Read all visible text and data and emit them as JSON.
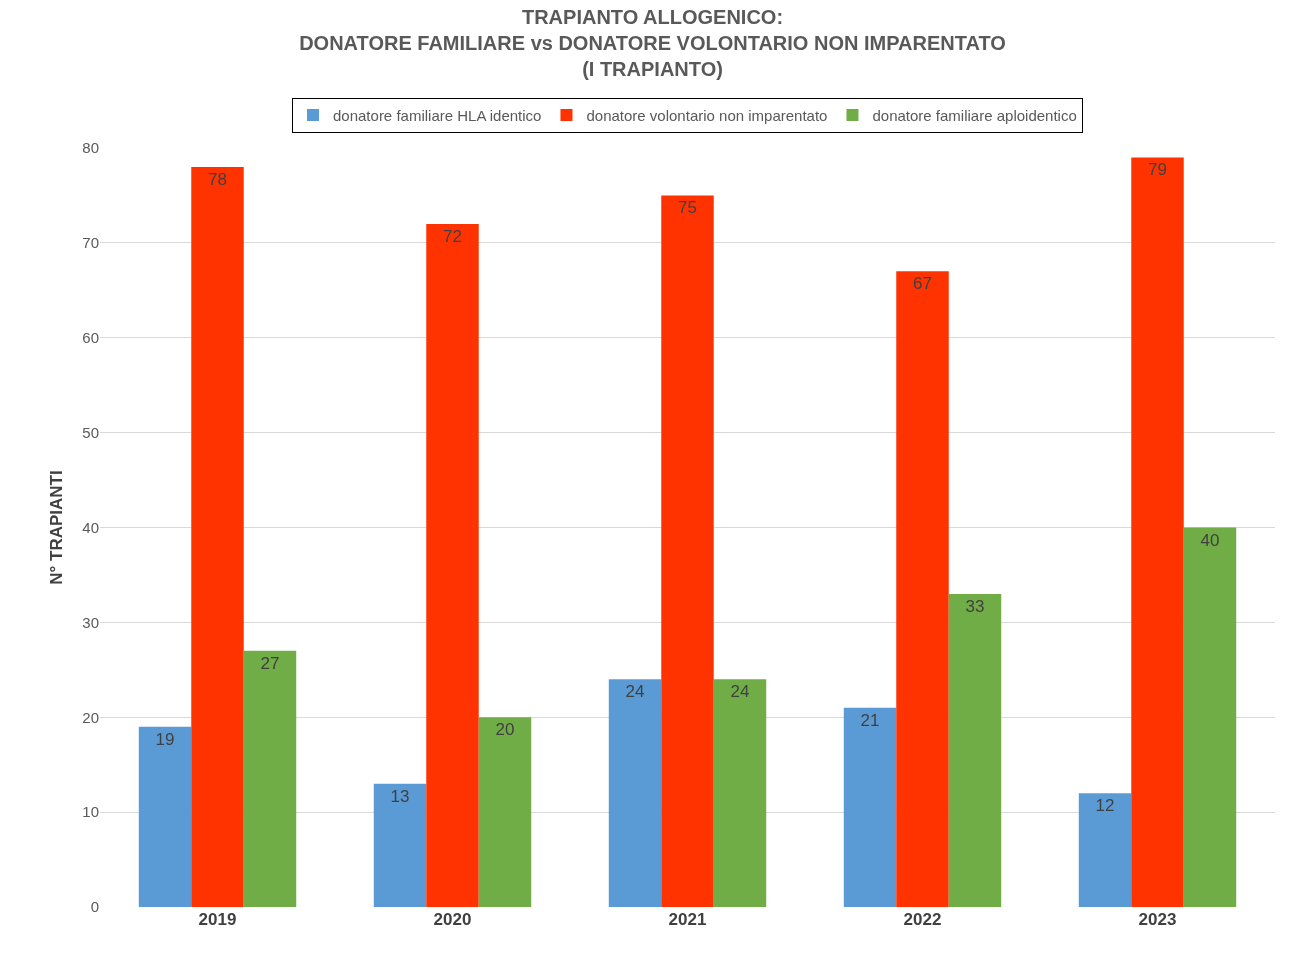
{
  "chart_data": {
    "type": "bar",
    "title": "TRAPIANTO ALLOGENICO:\nDONATORE FAMILIARE vs DONATORE VOLONTARIO NON IMPARENTATO\n(I TRAPIANTO)",
    "ylabel": "N° TRAPIANTI",
    "categories": [
      "2019",
      "2020",
      "2021",
      "2022",
      "2023"
    ],
    "series": [
      {
        "name": "donatore familiare HLA identico",
        "color": "#5b9bd5",
        "values": [
          19,
          13,
          24,
          21,
          12
        ]
      },
      {
        "name": "donatore volontario non imparentato",
        "color": "#ff3300",
        "values": [
          78,
          72,
          75,
          67,
          79
        ]
      },
      {
        "name": "donatore familiare aploidentico",
        "color": "#70ad47",
        "values": [
          27,
          20,
          24,
          33,
          40
        ]
      }
    ],
    "ylim": [
      0,
      80
    ],
    "yticks": [
      0,
      10,
      20,
      30,
      40,
      50,
      60,
      70,
      80
    ],
    "grid": true,
    "legend": "top",
    "data_labels": true
  }
}
